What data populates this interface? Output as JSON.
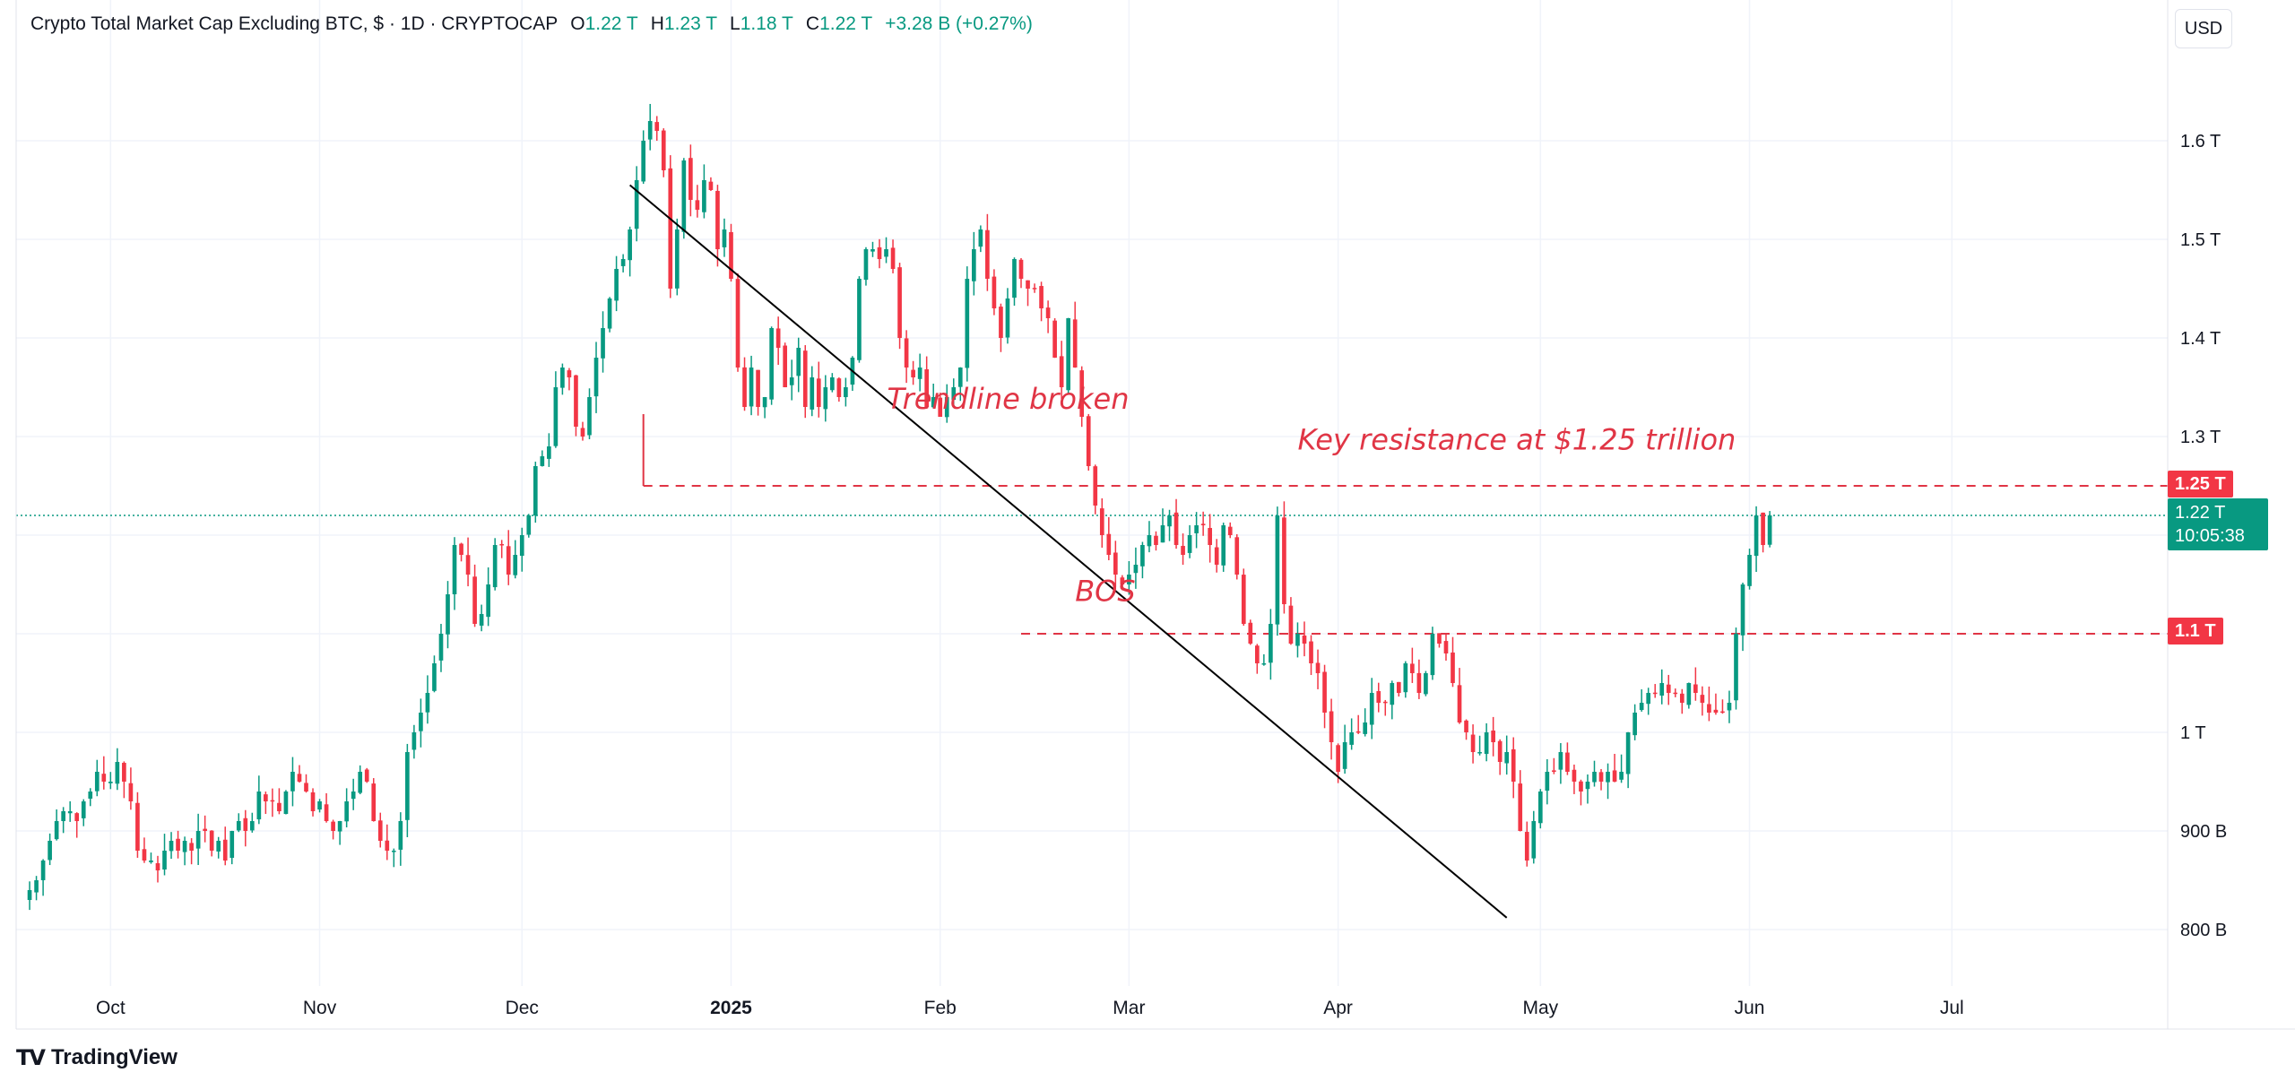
{
  "legend": {
    "title": "Crypto Total Market Cap Excluding BTC, $ · 1D · CRYPTOCAP",
    "open_label": "O",
    "open": "1.22 T",
    "high_label": "H",
    "high": "1.23 T",
    "low_label": "L",
    "low": "1.18 T",
    "close_label": "C",
    "close": "1.22 T",
    "change": "+3.28 B (+0.27%)"
  },
  "currency_button": "USD",
  "brand": {
    "mark": "TV",
    "name": "TradingView"
  },
  "price_tags": {
    "resistance": "1.25 T",
    "bos_level": "1.1 T",
    "current_price": "1.22 T",
    "countdown": "10:05:38"
  },
  "colors": {
    "up": "#089981",
    "down": "#f23645",
    "annotation": "#e03545",
    "grid": "#f0f3fa"
  },
  "chart_data": {
    "type": "candlestick",
    "title": "Crypto Total Market Cap Excluding BTC, $ · 1D · CRYPTOCAP",
    "ylim": [
      0.75,
      1.7
    ],
    "y_unit": "trillion USD",
    "y_ticks": [
      {
        "value": 1.6,
        "label": "1.6 T"
      },
      {
        "value": 1.5,
        "label": "1.5 T"
      },
      {
        "value": 1.4,
        "label": "1.4 T"
      },
      {
        "value": 1.3,
        "label": "1.3 T"
      },
      {
        "value": 1.0,
        "label": "1 T"
      },
      {
        "value": 0.9,
        "label": "900 B"
      },
      {
        "value": 0.8,
        "label": "800 B"
      }
    ],
    "x_ticks": [
      {
        "day": 12,
        "label": "Oct"
      },
      {
        "day": 43,
        "label": "Nov"
      },
      {
        "day": 73,
        "label": "Dec"
      },
      {
        "day": 104,
        "label": "2025",
        "bold": true
      },
      {
        "day": 135,
        "label": "Feb"
      },
      {
        "day": 163,
        "label": "Mar"
      },
      {
        "day": 194,
        "label": "Apr"
      },
      {
        "day": 224,
        "label": "May"
      },
      {
        "day": 255,
        "label": "Jun"
      },
      {
        "day": 285,
        "label": "Jul"
      }
    ],
    "x_start_day": -2,
    "x_end_day": 317,
    "closes": [
      0.84,
      0.85,
      0.87,
      0.89,
      0.91,
      0.92,
      0.92,
      0.91,
      0.93,
      0.94,
      0.96,
      0.95,
      0.95,
      0.97,
      0.95,
      0.93,
      0.88,
      0.87,
      0.87,
      0.86,
      0.88,
      0.89,
      0.88,
      0.89,
      0.88,
      0.9,
      0.9,
      0.88,
      0.89,
      0.87,
      0.9,
      0.91,
      0.9,
      0.91,
      0.94,
      0.93,
      0.93,
      0.92,
      0.94,
      0.96,
      0.95,
      0.94,
      0.92,
      0.93,
      0.91,
      0.9,
      0.91,
      0.93,
      0.94,
      0.96,
      0.95,
      0.91,
      0.89,
      0.88,
      0.88,
      0.91,
      0.98,
      1.0,
      1.02,
      1.04,
      1.07,
      1.1,
      1.14,
      1.19,
      1.18,
      1.16,
      1.11,
      1.12,
      1.15,
      1.19,
      1.19,
      1.16,
      1.18,
      1.2,
      1.22,
      1.27,
      1.28,
      1.29,
      1.35,
      1.37,
      1.36,
      1.31,
      1.3,
      1.34,
      1.38,
      1.41,
      1.44,
      1.47,
      1.48,
      1.51,
      1.56,
      1.6,
      1.62,
      1.61,
      1.57,
      1.45,
      1.51,
      1.58,
      1.54,
      1.53,
      1.56,
      1.55,
      1.49,
      1.51,
      1.46,
      1.37,
      1.33,
      1.37,
      1.33,
      1.34,
      1.41,
      1.39,
      1.35,
      1.36,
      1.39,
      1.33,
      1.36,
      1.33,
      1.35,
      1.36,
      1.34,
      1.35,
      1.38,
      1.46,
      1.49,
      1.49,
      1.48,
      1.49,
      1.47,
      1.4,
      1.37,
      1.36,
      1.37,
      1.33,
      1.34,
      1.32,
      1.34,
      1.35,
      1.37,
      1.46,
      1.49,
      1.51,
      1.46,
      1.43,
      1.4,
      1.44,
      1.48,
      1.46,
      1.45,
      1.45,
      1.43,
      1.42,
      1.38,
      1.35,
      1.42,
      1.37,
      1.32,
      1.27,
      1.23,
      1.2,
      1.18,
      1.16,
      1.15,
      1.16,
      1.17,
      1.19,
      1.2,
      1.19,
      1.21,
      1.22,
      1.19,
      1.18,
      1.2,
      1.21,
      1.21,
      1.19,
      1.17,
      1.21,
      1.2,
      1.16,
      1.11,
      1.09,
      1.07,
      1.07,
      1.11,
      1.22,
      1.13,
      1.09,
      1.1,
      1.09,
      1.07,
      1.06,
      1.02,
      0.99,
      0.96,
      0.99,
      1.0,
      1.0,
      1.01,
      1.04,
      1.03,
      1.03,
      1.05,
      1.04,
      1.07,
      1.06,
      1.04,
      1.06,
      1.1,
      1.09,
      1.08,
      1.05,
      1.01,
      1.0,
      0.98,
      0.98,
      1.0,
      0.99,
      0.97,
      0.98,
      0.95,
      0.9,
      0.87,
      0.91,
      0.94,
      0.96,
      0.96,
      0.98,
      0.96,
      0.95,
      0.94,
      0.95,
      0.96,
      0.95,
      0.96,
      0.95,
      0.96,
      1.0,
      1.02,
      1.03,
      1.04,
      1.04,
      1.05,
      1.04,
      1.04,
      1.03,
      1.05,
      1.04,
      1.03,
      1.02,
      1.02,
      1.02,
      1.03,
      1.1,
      1.15,
      1.18,
      1.22,
      1.19,
      1.22
    ],
    "annotations": [
      {
        "text": "Trendline broken",
        "type": "label"
      },
      {
        "text": "Key resistance at $1.25 trillion",
        "type": "label"
      },
      {
        "text": "BOS",
        "type": "label"
      }
    ],
    "trendline": {
      "from": {
        "day": 89,
        "value": 1.555
      },
      "to": {
        "day": 219,
        "value": 0.812
      }
    },
    "horizontal_levels": [
      {
        "value": 1.25,
        "from_day": 91,
        "label": "Key resistance at $1.25 trillion"
      },
      {
        "value": 1.1,
        "from_day": 147,
        "label": "BOS"
      }
    ],
    "current_price": 1.22
  }
}
